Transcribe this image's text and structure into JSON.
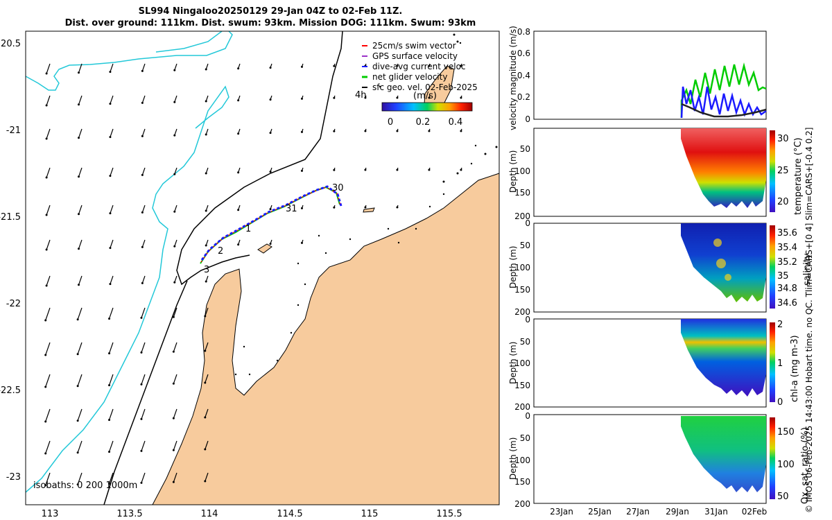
{
  "title": {
    "line1": "SL994 Ningaloo20250129 29-Jan 04Z to 02-Feb 11Z.",
    "line2": "Dist. over ground: 111km. Dist. swum: 93km. Mission DOG: 111km. Swum: 93km"
  },
  "map": {
    "lat_ticks": [
      "20.5",
      "-21",
      "-21.5",
      "-22",
      "-22.5",
      "-23"
    ],
    "lon_ticks": [
      "113",
      "113.5",
      "114",
      "114.5",
      "115",
      "115.5"
    ],
    "isobath_label": "isobaths: 0   200  1000m",
    "day_labels": [
      "30",
      "31",
      "1",
      "2",
      "3"
    ],
    "time_label": "4h",
    "colors": {
      "land": "#f7cb9d",
      "coast_teal": "#22c8d8",
      "isobath": "#000000"
    }
  },
  "legend": {
    "items": [
      {
        "label": "25cm/s swim vector",
        "color": "#ff0000"
      },
      {
        "label": "GPS surface velocity",
        "color": "#9b30c8"
      },
      {
        "label": "dive-avg current veloc",
        "color": "#1a1aff"
      },
      {
        "label": "net glider velocity",
        "color": "#00cc00"
      },
      {
        "label": "sfc geo. vel. 02-Feb-2025",
        "color": "#000000"
      }
    ],
    "colorbar_unit": "(m/s)",
    "colorbar_ticks": [
      "0",
      "0.2",
      "0.4"
    ]
  },
  "velocity_panel": {
    "ylabel": "velocity magnitude (m/s)",
    "y_ticks": [
      "0.8",
      "0.6",
      "0.4",
      "0.2",
      "0"
    ]
  },
  "profiles": [
    {
      "id": "temperature",
      "ylabel": "Depth (m)",
      "depth_ticks": [
        "50",
        "100",
        "150",
        "200"
      ],
      "colorbar_label": "temperature (°C)",
      "colorbar_ticks": [
        "30",
        "25",
        "20"
      ]
    },
    {
      "id": "salinity",
      "ylabel": "Depth (m)",
      "depth_ticks": [
        "0",
        "50",
        "100",
        "150",
        "200"
      ],
      "colorbar_label": "salinity",
      "colorbar_ticks": [
        "35.6",
        "35.4",
        "35.2",
        "35",
        "34.8",
        "34.6"
      ]
    },
    {
      "id": "chla",
      "ylabel": "Depth (m)",
      "depth_ticks": [
        "0",
        "50",
        "100",
        "150",
        "200"
      ],
      "colorbar_label": "chl-a (mg m-3)",
      "colorbar_ticks": [
        "2",
        "1",
        "0"
      ]
    },
    {
      "id": "oxygen",
      "ylabel": "Depth (m)",
      "depth_ticks": [
        "0",
        "50",
        "100",
        "150",
        "200"
      ],
      "colorbar_label": "Ox. sat. ratio (%)",
      "colorbar_ticks": [
        "150",
        "100",
        "50"
      ]
    }
  ],
  "time_ticks": [
    "23Jan",
    "25Jan",
    "27Jan",
    "29Jan",
    "31Jan",
    "02Feb"
  ],
  "credit": "© IMOS 06-Feb-2025 14:43:00 Hobart time. no QC. Tlim=CARS+[0 4] Slim=CARS+[-0.4 0.2]"
}
